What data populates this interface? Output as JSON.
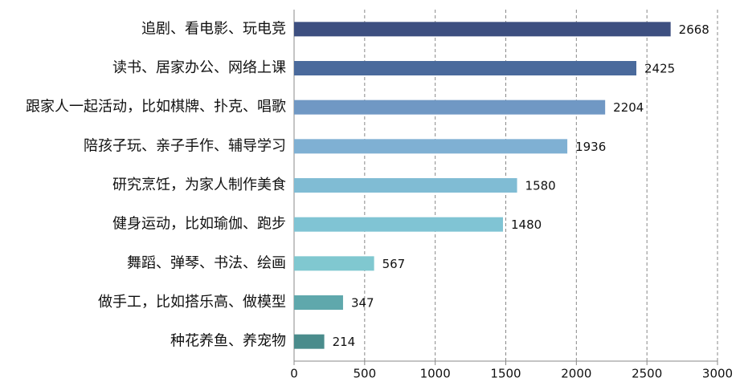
{
  "chart_data": {
    "type": "hbar",
    "categories": [
      "追剧、看电影、玩电竞",
      "读书、居家办公、网络上课",
      "跟家人一起活动，比如棋牌、扑克、唱歌",
      "陪孩子玩、亲子手作、辅导学习",
      "研究烹饪，为家人制作美食",
      "健身运动，比如瑜伽、跑步",
      "舞蹈、弹琴、书法、绘画",
      "做手工，比如搭乐高、做模型",
      "种花养鱼、养宠物"
    ],
    "values": [
      2668,
      2425,
      2204,
      1936,
      1580,
      1480,
      567,
      347,
      214
    ],
    "colors": [
      "#3d4f80",
      "#4a6a9c",
      "#7098c4",
      "#7fb0d3",
      "#80bcd4",
      "#80c4d4",
      "#80c8d0",
      "#5fa8ac",
      "#4a8c8c"
    ],
    "xlim": [
      0,
      3000
    ],
    "xticks": [
      0,
      500,
      1000,
      1500,
      2000,
      2500,
      3000
    ],
    "grid": true
  }
}
